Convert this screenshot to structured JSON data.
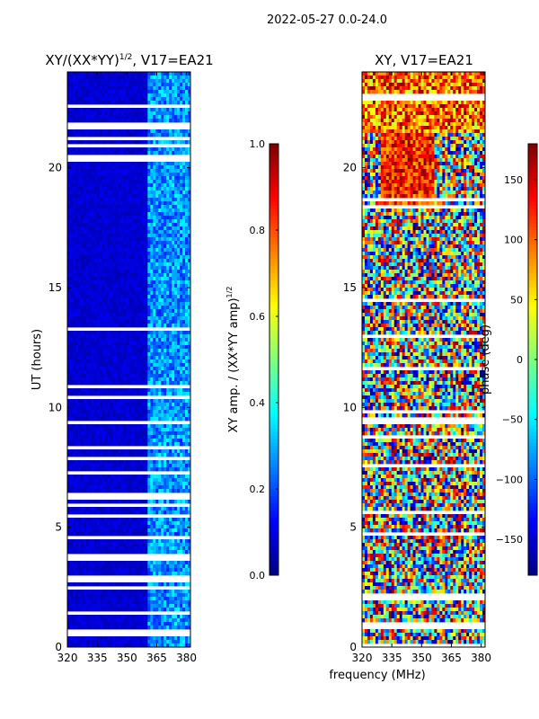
{
  "suptitle": "2022-05-27 0.0-24.0",
  "chart_data": [
    {
      "type": "heatmap",
      "title_main": "XY/(XX*YY)",
      "title_exp": "1/2",
      "title_tail": ", V17=EA21",
      "xlabel": "",
      "ylabel": "UT (hours)",
      "xlim": [
        320,
        382
      ],
      "ylim": [
        0,
        24
      ],
      "xticks": [
        320,
        335,
        350,
        365,
        380
      ],
      "yticks": [
        0,
        5,
        10,
        15,
        20
      ],
      "colorscale": "jet",
      "value_range": [
        0.0,
        1.0
      ],
      "colorbar": {
        "label_main": "XY amp. / (XX*YY amp)",
        "label_exp": "1/2",
        "ticks": [
          0.0,
          0.2,
          0.4,
          0.6,
          0.8,
          1.0
        ],
        "tick_labels": [
          "0.0",
          "0.2",
          "0.4",
          "0.6",
          "0.8",
          "1.0"
        ]
      },
      "description": "Mostly low normalized amplitude (~0.0-0.1) below 361 MHz; elevated amplitude (~0.2-0.4) in 361-382 MHz channels; many blank (flagged) time rows."
    },
    {
      "type": "heatmap",
      "title_main": "XY, V17=EA21",
      "xlabel": "frequency (MHz)",
      "ylabel": "",
      "xlim": [
        320,
        382
      ],
      "ylim": [
        0,
        24
      ],
      "xticks": [
        320,
        335,
        350,
        365,
        380
      ],
      "yticks": [
        0,
        5,
        10,
        15,
        20
      ],
      "colorscale": "jet",
      "value_range": [
        -180,
        180
      ],
      "colorbar": {
        "label_main": "phase (deg)",
        "ticks": [
          -150,
          -100,
          -50,
          0,
          50,
          100,
          150
        ],
        "tick_labels": [
          "−150",
          "−100",
          "−50",
          "0",
          "50",
          "100",
          "150"
        ]
      },
      "description": "Phase varies across full range; patches of positive phase (50-180 deg) around 330-355 MHz near 19-22 h and 22-24 h; many blank flagged rows."
    }
  ],
  "colors": {
    "background": "#ffffff",
    "axis": "#000000",
    "flag": "#ffffff"
  }
}
